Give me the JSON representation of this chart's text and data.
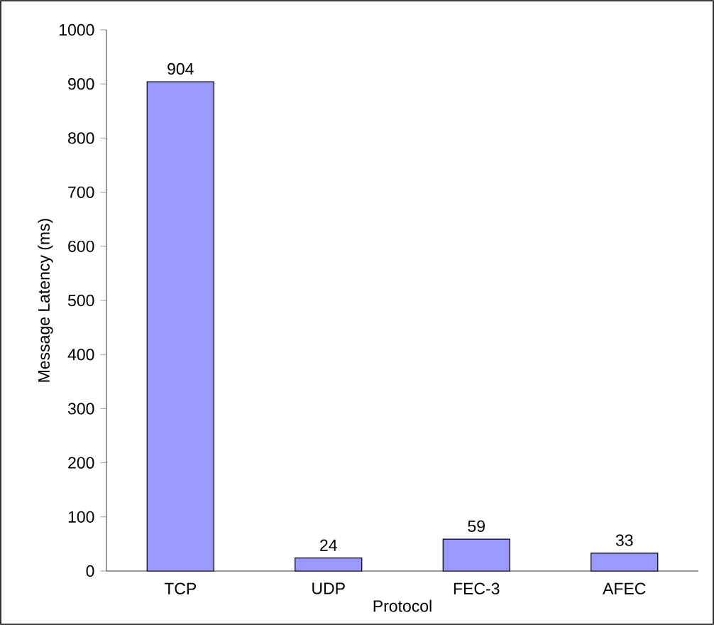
{
  "chart_data": {
    "type": "bar",
    "xlabel": "Protocol",
    "ylabel": "Message Latency (ms)",
    "categories": [
      "TCP",
      "UDP",
      "FEC-3",
      "AFEC"
    ],
    "values": [
      904,
      24,
      59,
      33
    ],
    "color": "#9999ff",
    "ylim": [
      0,
      1000
    ],
    "yticks": [
      0,
      100,
      200,
      300,
      400,
      500,
      600,
      700,
      800,
      900,
      1000
    ],
    "data_labels": true
  }
}
